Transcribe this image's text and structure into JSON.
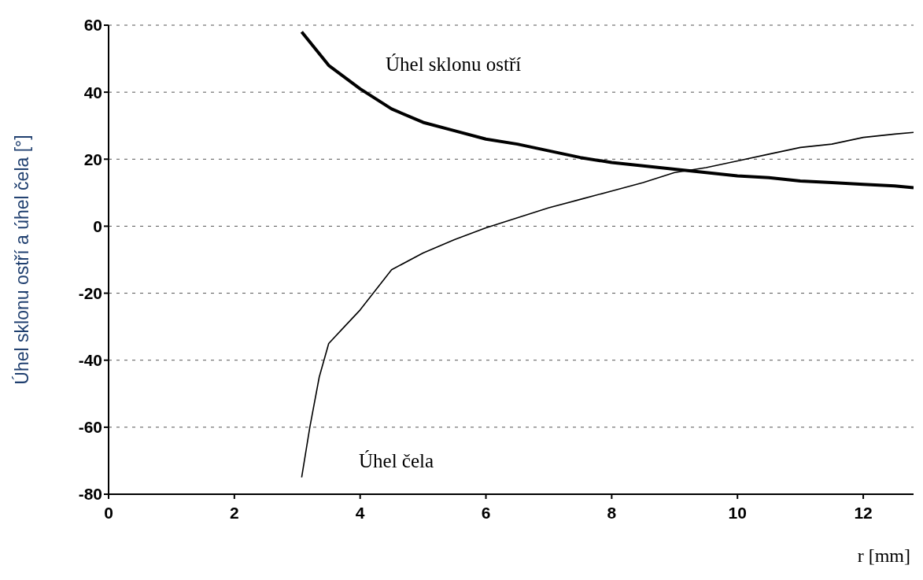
{
  "chart_data": {
    "type": "line",
    "ylabel": "Úhel sklonu ostří a úhel čela [°]",
    "xlabel": "r [mm]",
    "xlim": [
      0,
      12.8
    ],
    "xticks": [
      0,
      2,
      4,
      6,
      8,
      10,
      12
    ],
    "ylim": [
      -80,
      60
    ],
    "yticks": [
      -80,
      -60,
      -40,
      -20,
      0,
      20,
      40,
      60
    ],
    "grid": "y",
    "marker": "none",
    "line_style": "solid",
    "series": [
      {
        "color": "#000000",
        "x": [
          3.07,
          3.5,
          4,
          4.5,
          5,
          5.5,
          6,
          6.5,
          7,
          7.5,
          8,
          8.5,
          9,
          9.5,
          10,
          10.5,
          11,
          11.5,
          12,
          12.5,
          12.8
        ],
        "values": [
          58,
          48,
          41,
          35,
          31,
          28.5,
          26,
          24.5,
          22.5,
          20.5,
          19,
          18,
          17,
          16,
          15,
          14.5,
          13.5,
          13,
          12.5,
          12,
          11.5
        ]
      },
      {
        "color": "#000000",
        "x": [
          3.07,
          3.2,
          3.35,
          3.5,
          3.75,
          4,
          4.5,
          5,
          5.5,
          6,
          6.5,
          7,
          7.5,
          8,
          8.5,
          9,
          9.5,
          10,
          10.5,
          11,
          11.5,
          12,
          12.5,
          12.8
        ],
        "values": [
          -75,
          -60,
          -45,
          -35,
          -30,
          -25,
          -13,
          -8,
          -4,
          -0.5,
          2.5,
          5.5,
          8,
          10.5,
          13,
          16,
          17.5,
          19.5,
          21.5,
          23.5,
          24.5,
          26.5,
          27.5,
          28
        ]
      }
    ],
    "annotations": [
      "Úhel sklonu ostří",
      "Úhel čela"
    ]
  }
}
